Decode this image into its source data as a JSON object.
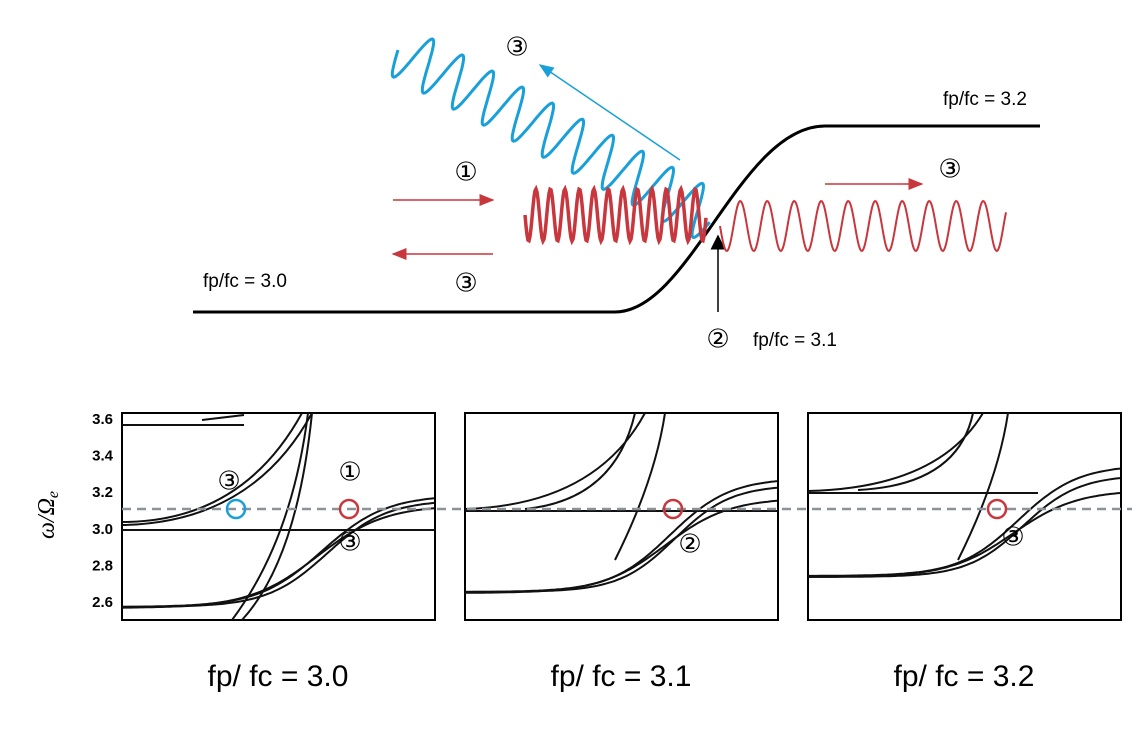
{
  "diagram": {
    "labels": {
      "top_right": "fp/fc = 3.2",
      "left": "fp/fc = 3.0",
      "middle": "fp/fc = 3.1"
    },
    "markers": {
      "blue_wave": "③",
      "incident": "①",
      "reflected": "③",
      "transmitted": "③",
      "cutoff": "②"
    }
  },
  "panels": [
    {
      "caption": "fp/ fc = 3.0",
      "markers": [
        "③",
        "①",
        "③"
      ]
    },
    {
      "caption": "fp/ fc = 3.1",
      "markers": [
        "②"
      ]
    },
    {
      "caption": "fp/ fc = 3.2",
      "markers": [
        "③"
      ]
    }
  ],
  "y_axis": {
    "label": "ω/Ω",
    "subscript": "e",
    "ticks": [
      {
        "value": 3.6,
        "label": "3.6"
      },
      {
        "value": 3.4,
        "label": "3.4"
      },
      {
        "value": 3.2,
        "label": "3.2"
      },
      {
        "value": 3.0,
        "label": "3.0"
      },
      {
        "value": 2.8,
        "label": "2.8"
      },
      {
        "value": 2.6,
        "label": "2.6"
      }
    ]
  }
}
